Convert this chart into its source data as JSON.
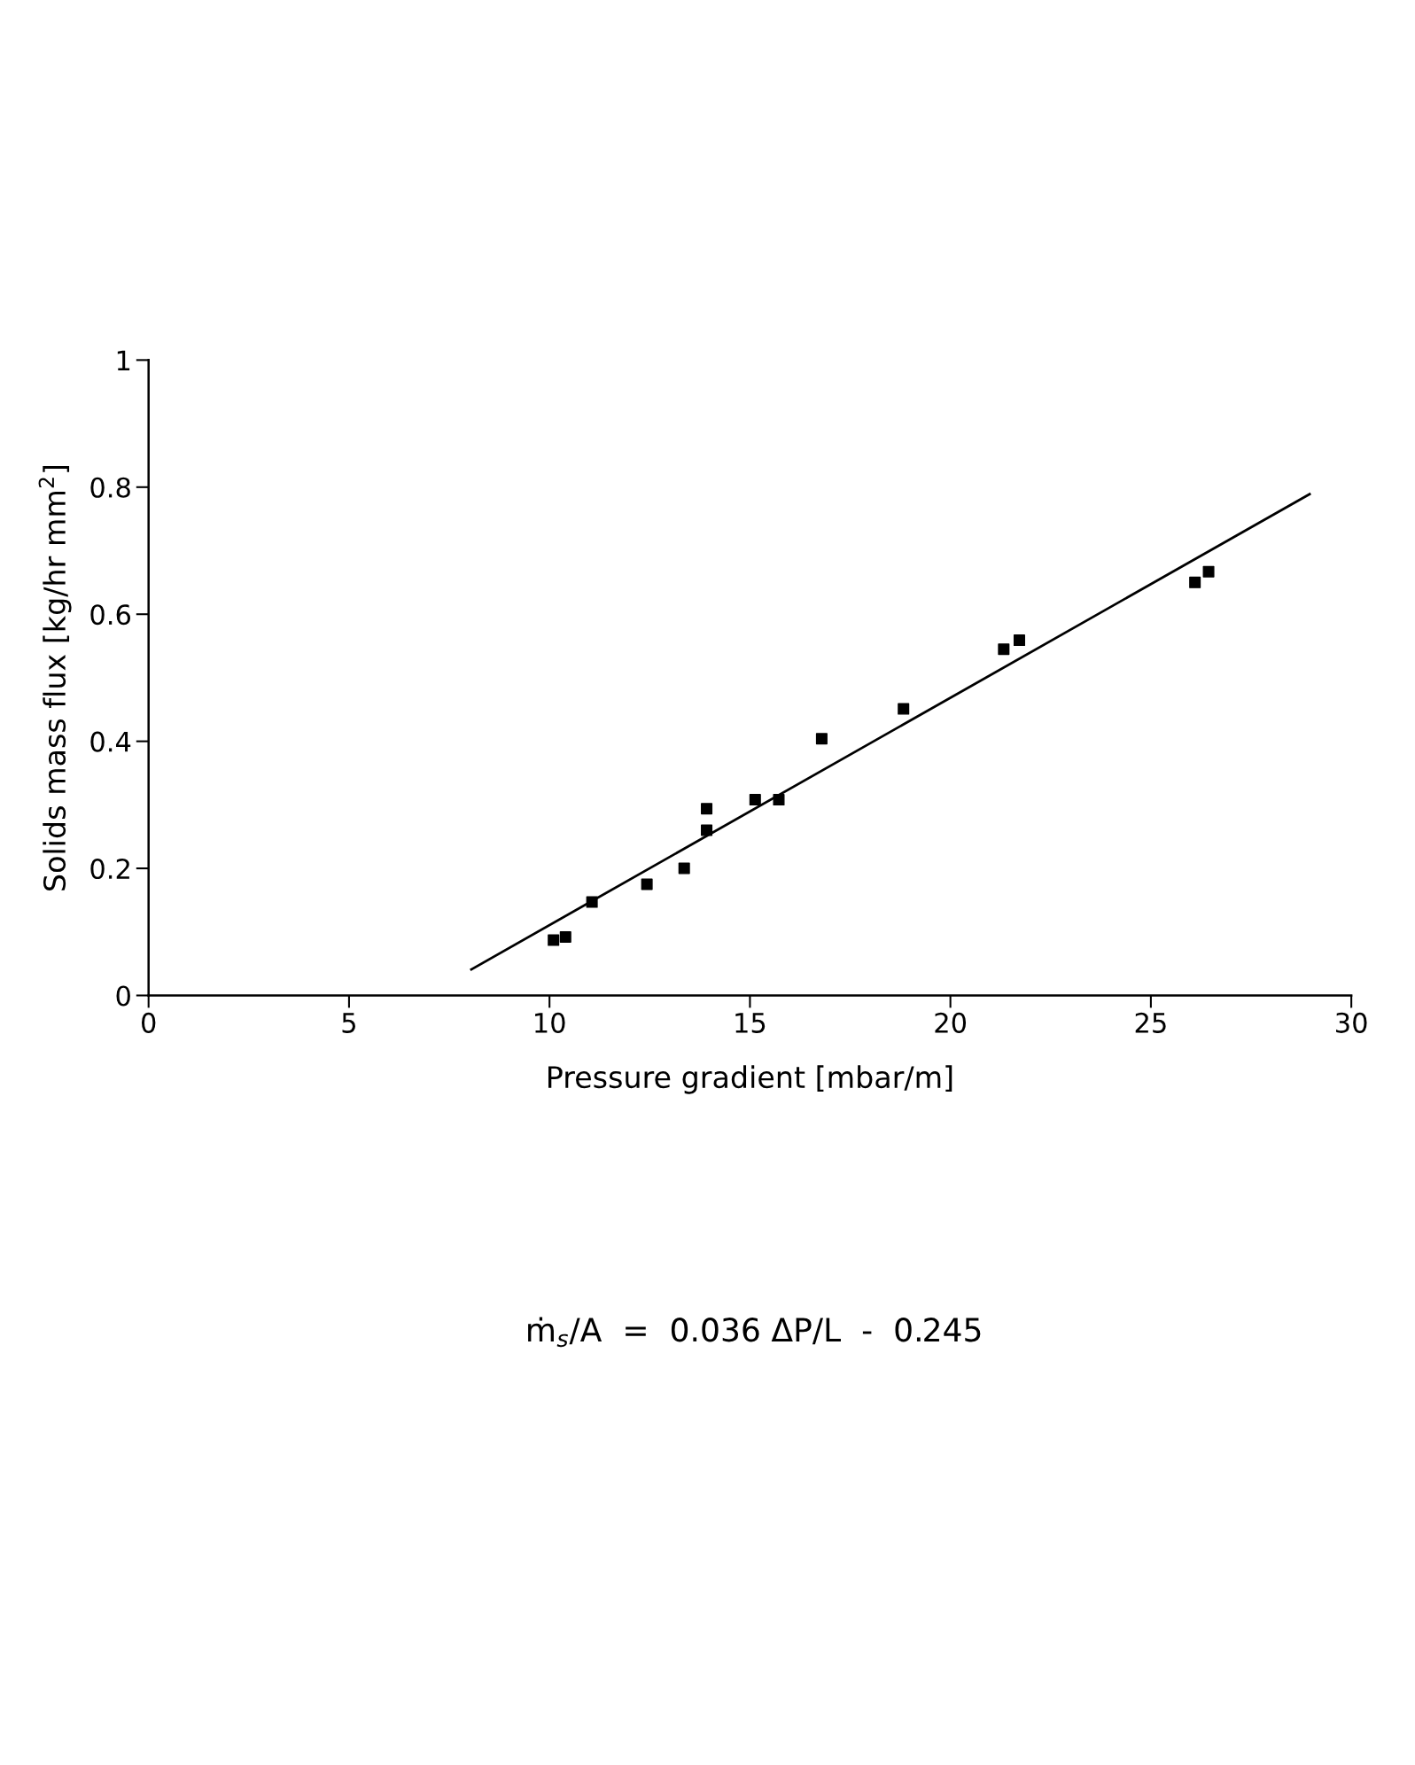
{
  "chart_data": {
    "type": "scatter",
    "xlabel": "Pressure gradient [mbar/m]",
    "ylabel": "Solids mass flux [kg/hr mm$^{2}$]",
    "x": [
      10.1,
      10.4,
      11.06,
      12.43,
      13.36,
      13.92,
      13.92,
      15.13,
      15.72,
      16.79,
      18.83,
      21.33,
      21.72,
      26.1,
      26.44
    ],
    "series": [
      {
        "color": "#000000",
        "marker": "square",
        "values": [
          0.087,
          0.092,
          0.147,
          0.175,
          0.2,
          0.26,
          0.294,
          0.308,
          0.308,
          0.404,
          0.451,
          0.545,
          0.559,
          0.65,
          0.667
        ]
      },
      {
        "type": "line",
        "color": "#000000",
        "x": [
          8.05,
          28.96
        ],
        "values": [
          0.041,
          0.789
        ]
      }
    ],
    "xlim": [
      0,
      30
    ],
    "xticks": [
      0,
      5,
      10,
      15,
      20,
      25,
      30
    ],
    "ylim": [
      0,
      1
    ],
    "yticks": [
      0,
      0.2,
      0.4,
      0.6,
      0.8,
      1
    ],
    "grid": false,
    "legend": false,
    "annotations": [
      "ṁ$_{s}$/A  =  0.036 ΔP/L  -  0.245"
    ]
  }
}
